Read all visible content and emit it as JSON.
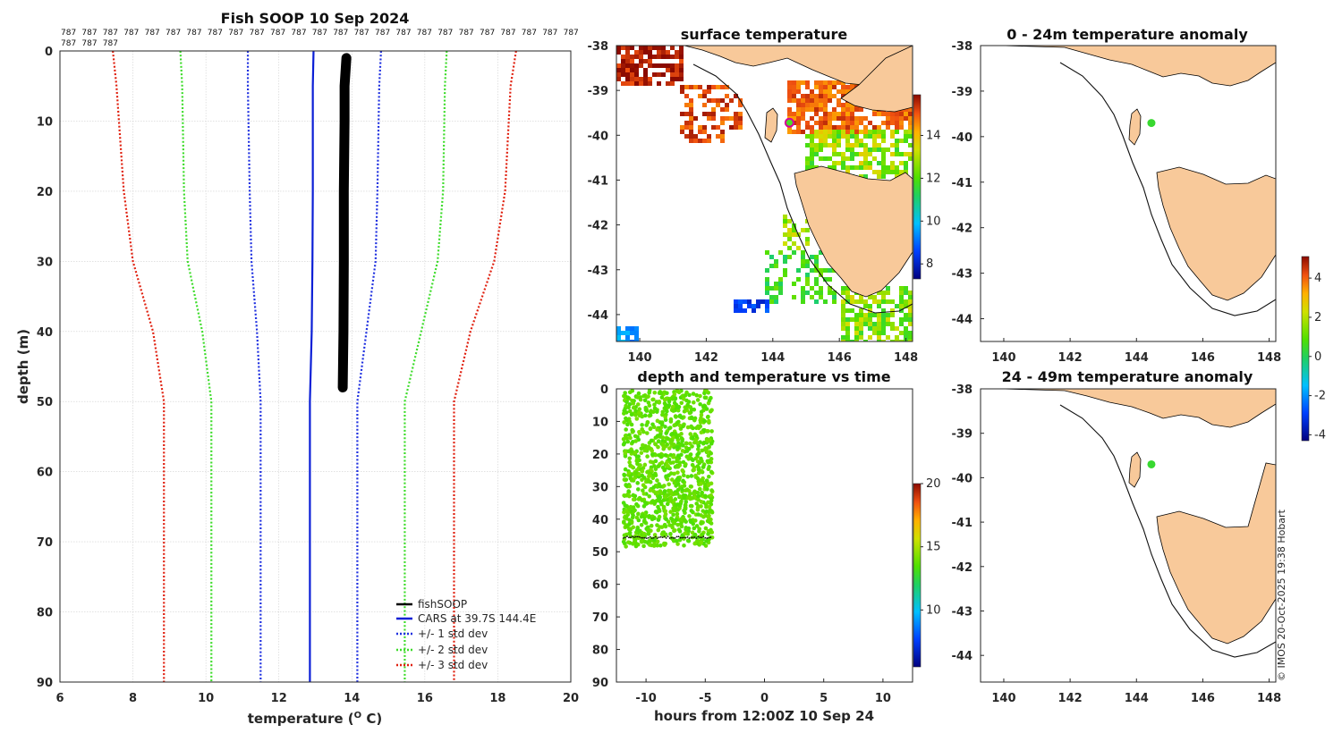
{
  "figure": {
    "credit": "© IMOS 20-Oct-2025 19:38 Hobart",
    "colors": {
      "cars": "#0b1fd6",
      "std1": "#1f30e0",
      "std2": "#3ddc2a",
      "std3": "#e0200f",
      "fish": "#000000",
      "land": "#f8c99a"
    }
  },
  "chart_data": [
    {
      "type": "line",
      "id": "profile",
      "title": "Fish SOOP 10 Sep 2024",
      "xlabel": "temperature (",
      "xlabel_sup": "O",
      "xlabel_end": " C)",
      "ylabel": "depth (m)",
      "xlim": [
        6,
        20
      ],
      "ylim": [
        0,
        90
      ],
      "xticks": [
        6,
        8,
        10,
        12,
        14,
        16,
        18,
        20
      ],
      "yticks": [
        0,
        10,
        20,
        30,
        40,
        50,
        60,
        70,
        80,
        90
      ],
      "header_code": "787",
      "header_rows": [
        25,
        3
      ],
      "depth": [
        0,
        5,
        20,
        30,
        40,
        50,
        60,
        70,
        80,
        90
      ],
      "series": [
        {
          "name": "fishSOOP",
          "style": "thick",
          "depth": [
            1,
            5,
            10,
            20,
            30,
            40,
            48
          ],
          "values": [
            13.85,
            13.8,
            13.8,
            13.78,
            13.78,
            13.77,
            13.75
          ]
        },
        {
          "name": "CARS at 39.7S 144.4E",
          "style": "solid",
          "values": [
            12.95,
            12.93,
            12.93,
            12.92,
            12.9,
            12.85,
            12.85,
            12.85,
            12.85,
            12.85
          ]
        },
        {
          "name": "+/- 1 std dev",
          "style": "dotted",
          "values": [
            11.15,
            11.15,
            11.2,
            11.25,
            11.4,
            11.5,
            11.5,
            11.5,
            11.5,
            11.5
          ]
        },
        {
          "name": "",
          "style": "dotted",
          "values": [
            14.8,
            14.75,
            14.7,
            14.65,
            14.4,
            14.15,
            14.15,
            14.15,
            14.15,
            14.15
          ]
        },
        {
          "name": "+/- 2 std dev",
          "style": "dotted",
          "values": [
            9.3,
            9.35,
            9.4,
            9.5,
            9.9,
            10.15,
            10.15,
            10.15,
            10.15,
            10.15
          ]
        },
        {
          "name": "",
          "style": "dotted",
          "values": [
            16.6,
            16.55,
            16.5,
            16.35,
            15.9,
            15.45,
            15.45,
            15.45,
            15.45,
            15.45
          ]
        },
        {
          "name": "+/- 3 std dev",
          "style": "dotted",
          "values": [
            7.45,
            7.55,
            7.75,
            8.0,
            8.55,
            8.85,
            8.85,
            8.85,
            8.85,
            8.85
          ]
        },
        {
          "name": "",
          "style": "dotted",
          "values": [
            18.5,
            18.35,
            18.2,
            17.9,
            17.25,
            16.8,
            16.8,
            16.8,
            16.8,
            16.8
          ]
        }
      ]
    },
    {
      "type": "heatmap",
      "id": "sst",
      "title": "surface temperature",
      "xlim": [
        139.3,
        148.2
      ],
      "ylim": [
        -44.6,
        -38
      ],
      "xticks": [
        140,
        142,
        144,
        146,
        148
      ],
      "yticks": [
        -38,
        -39,
        -40,
        -41,
        -42,
        -43,
        -44
      ],
      "colorbar": {
        "range": [
          7.3,
          15.9
        ],
        "ticks": [
          8,
          10,
          12,
          14
        ]
      },
      "station": {
        "lon": 144.5,
        "lat": -39.72
      }
    },
    {
      "type": "scatter",
      "id": "depth_time",
      "title": "depth and temperature vs time",
      "xlabel": "hours from 12:00Z 10 Sep 24",
      "xlim": [
        -12.5,
        12.5
      ],
      "ylim": [
        0,
        90
      ],
      "xticks": [
        -10,
        -5,
        0,
        5,
        10
      ],
      "yticks": [
        0,
        10,
        20,
        30,
        40,
        50,
        60,
        70,
        80,
        90
      ],
      "time_range": [
        -11.9,
        -4.4
      ],
      "depth_range": [
        0.5,
        48.5
      ],
      "colorbar": {
        "range": [
          5.5,
          20
        ],
        "ticks": [
          10,
          15,
          20
        ]
      }
    },
    {
      "type": "scatter",
      "id": "anom_top",
      "title": "0 - 24m temperature anomaly",
      "xlim": [
        139.3,
        148.2
      ],
      "ylim": [
        -44.5,
        -38
      ],
      "xticks": [
        140,
        142,
        144,
        146,
        148
      ],
      "yticks": [
        -38,
        -39,
        -40,
        -41,
        -42,
        -43,
        -44
      ],
      "station": {
        "lon": 144.45,
        "lat": -39.7,
        "anomaly": 0.4
      }
    },
    {
      "type": "scatter",
      "id": "anom_bot",
      "title": "24 - 49m temperature anomaly",
      "xlim": [
        139.3,
        148.2
      ],
      "ylim": [
        -44.6,
        -38
      ],
      "xticks": [
        140,
        142,
        144,
        146,
        148
      ],
      "yticks": [
        -38,
        -39,
        -40,
        -41,
        -42,
        -43,
        -44
      ],
      "station": {
        "lon": 144.45,
        "lat": -39.7,
        "anomaly": 0.4
      },
      "colorbar": {
        "range": [
          -4.3,
          5.1
        ],
        "ticks": [
          -4,
          -2,
          0,
          2,
          4
        ]
      }
    }
  ]
}
